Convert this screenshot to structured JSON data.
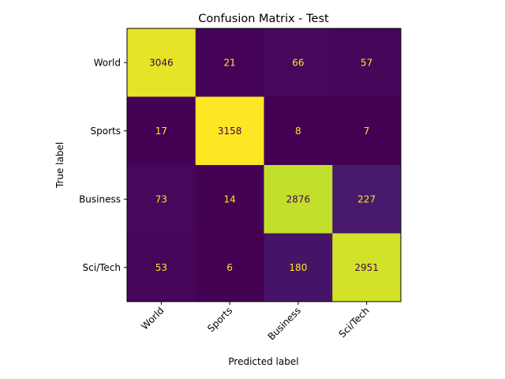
{
  "chart_data": {
    "type": "heatmap",
    "title": "Confusion Matrix - Test",
    "xlabel": "Predicted label",
    "ylabel": "True label",
    "x_categories": [
      "World",
      "Sports",
      "Business",
      "Sci/Tech"
    ],
    "y_categories": [
      "World",
      "Sports",
      "Business",
      "Sci/Tech"
    ],
    "values": [
      [
        3046,
        21,
        66,
        57
      ],
      [
        17,
        3158,
        8,
        7
      ],
      [
        73,
        14,
        2876,
        227
      ],
      [
        53,
        6,
        180,
        2951
      ]
    ],
    "colormap": "viridis",
    "grid": false
  }
}
